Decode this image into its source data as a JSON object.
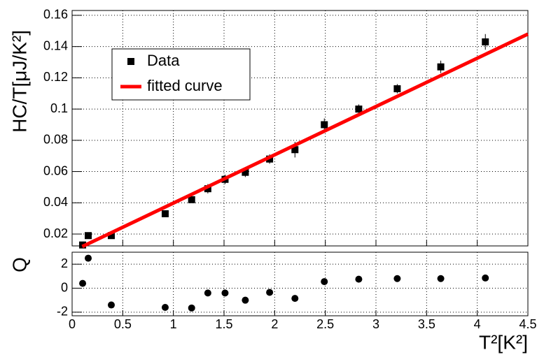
{
  "chart_data": [
    {
      "type": "scatter",
      "ylabel": "HC/T[μJ/K²]",
      "xlim": [
        0,
        4.5
      ],
      "xticks": [
        0,
        0.5,
        1,
        1.5,
        2,
        2.5,
        3,
        3.5,
        4,
        4.5
      ],
      "ylim": [
        0.0124,
        0.1631
      ],
      "yticks": [
        0.02,
        0.04,
        0.06,
        0.08,
        0.1,
        0.12,
        0.14,
        0.16
      ],
      "grid": true,
      "legend": "upper left",
      "series": [
        {
          "name": "Data",
          "color": "#000000",
          "marker": "square",
          "x": [
            0.104,
            0.159,
            0.387,
            0.919,
            1.18,
            1.34,
            1.51,
            1.71,
            1.95,
            2.2,
            2.49,
            2.83,
            3.21,
            3.64,
            4.08
          ],
          "values": [
            0.013,
            0.019,
            0.019,
            0.033,
            0.042,
            0.049,
            0.055,
            0.0595,
            0.068,
            0.074,
            0.09,
            0.1,
            0.113,
            0.127,
            0.143
          ],
          "errors": [
            0.001,
            0.001,
            0.001,
            0.002,
            0.002,
            0.003,
            0.003,
            0.003,
            0.003,
            0.005,
            0.004,
            0.003,
            0.003,
            0.004,
            0.005
          ]
        },
        {
          "name": "fitted curve",
          "color": "#ff0000",
          "line": true,
          "x": [
            0.1,
            4.5
          ],
          "values": [
            0.012,
            0.148
          ]
        }
      ]
    },
    {
      "type": "scatter",
      "ylabel": "Q",
      "xlabel": "T²[K²]",
      "xlim": [
        0,
        4.5
      ],
      "xticks": [
        0,
        0.5,
        1,
        1.5,
        2,
        2.5,
        3,
        3.5,
        4,
        4.5
      ],
      "ylim": [
        -2.3,
        3
      ],
      "yticks": [
        -2,
        0,
        2
      ],
      "grid": true,
      "series": [
        {
          "color": "#000000",
          "marker": "circle",
          "x": [
            0.104,
            0.159,
            0.387,
            0.919,
            1.18,
            1.34,
            1.51,
            1.71,
            1.95,
            2.2,
            2.49,
            2.83,
            3.21,
            3.64,
            4.08
          ],
          "values": [
            0.4,
            2.5,
            -1.4,
            -1.6,
            -1.65,
            -0.4,
            -0.4,
            -1.0,
            -0.35,
            -0.85,
            0.55,
            0.75,
            0.8,
            0.8,
            0.85
          ]
        }
      ]
    }
  ]
}
